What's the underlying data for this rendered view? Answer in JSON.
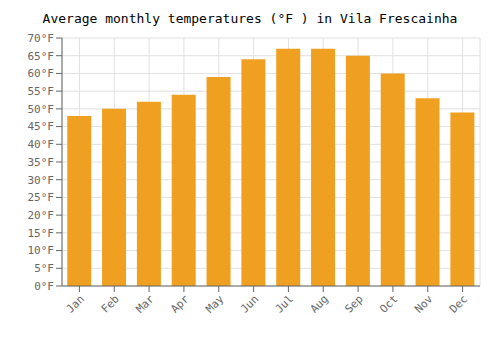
{
  "chart_data": {
    "type": "bar",
    "title": "Average monthly temperatures (°F ) in Vila Frescainha",
    "categories": [
      "Jan",
      "Feb",
      "Mar",
      "Apr",
      "May",
      "Jun",
      "Jul",
      "Aug",
      "Sep",
      "Oct",
      "Nov",
      "Dec"
    ],
    "values": [
      48,
      50,
      52,
      54,
      59,
      64,
      67,
      67,
      65,
      60,
      53,
      49
    ],
    "color": "#F0A020",
    "ylim": [
      0,
      70
    ],
    "yticks": [
      {
        "value": 0,
        "label": "0°F"
      },
      {
        "value": 5,
        "label": "5°F"
      },
      {
        "value": 10,
        "label": "10°F"
      },
      {
        "value": 15,
        "label": "15°F"
      },
      {
        "value": 20,
        "label": "20°F"
      },
      {
        "value": 25,
        "label": "25°F"
      },
      {
        "value": 30,
        "label": "30°F"
      },
      {
        "value": 35,
        "label": "35°F"
      },
      {
        "value": 40,
        "label": "40°F"
      },
      {
        "value": 45,
        "label": "45°F"
      },
      {
        "value": 50,
        "label": "50°F"
      },
      {
        "value": 55,
        "label": "55°F"
      },
      {
        "value": 60,
        "label": "60°F"
      },
      {
        "value": 65,
        "label": "65°F"
      },
      {
        "value": 70,
        "label": "70°F"
      }
    ],
    "grid": true
  }
}
